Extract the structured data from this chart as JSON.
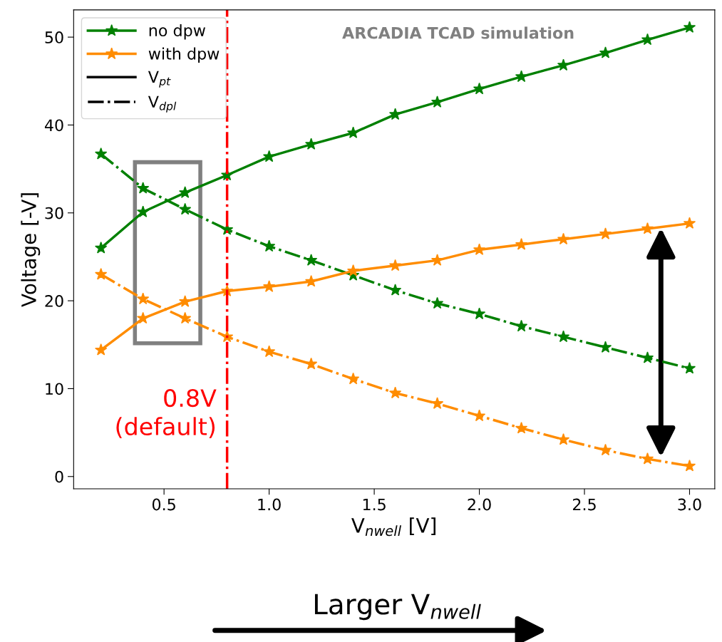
{
  "chart_data": {
    "type": "line",
    "xlabel": "V$_{nwell}$ [V]",
    "ylabel": "Voltage [-V]",
    "x": [
      0.2,
      0.4,
      0.6,
      0.8,
      1.0,
      1.2,
      1.4,
      1.6,
      1.8,
      2.0,
      2.2,
      2.4,
      2.6,
      2.8,
      3.0
    ],
    "series": [
      {
        "name": "no dpw",
        "color": "#008000",
        "line_style": "solid",
        "values": [
          26.0,
          30.1,
          32.3,
          34.3,
          36.4,
          37.8,
          39.1,
          41.2,
          42.6,
          44.1,
          45.5,
          46.8,
          48.2,
          49.7,
          51.1
        ]
      },
      {
        "color": "#008000",
        "line_style": "dashdot",
        "values": [
          36.7,
          32.8,
          30.4,
          28.1,
          26.2,
          24.6,
          22.9,
          21.2,
          19.7,
          18.5,
          17.1,
          15.9,
          14.7,
          13.5,
          12.3
        ]
      },
      {
        "name": "with dpw",
        "color": "#ff8c00",
        "line_style": "solid",
        "values": [
          14.4,
          18.0,
          19.9,
          21.1,
          21.6,
          22.2,
          23.4,
          24.0,
          24.6,
          25.8,
          26.4,
          27.0,
          27.6,
          28.2,
          28.8
        ]
      },
      {
        "color": "#ff8c00",
        "line_style": "dashdot",
        "values": [
          23.0,
          20.2,
          18.0,
          15.9,
          14.2,
          12.8,
          11.1,
          9.5,
          8.3,
          6.9,
          5.5,
          4.2,
          3.0,
          2.0,
          1.2
        ]
      }
    ],
    "marker": "star",
    "xlim": [
      0.07,
      3.12
    ],
    "ylim": [
      -1.4,
      53.1
    ],
    "xticks": [
      0.5,
      {
        "value": 1.0,
        "label": "1.0"
      },
      1.5,
      {
        "value": 2.0,
        "label": "2.0"
      },
      2.5,
      {
        "value": 3.0,
        "label": "3.0"
      }
    ],
    "yticks": [
      0,
      10,
      20,
      30,
      40,
      50
    ],
    "ref_lines": [
      {
        "axis": "x",
        "value": 0.8,
        "label": "0.8V\n(default)",
        "color": "#ff0000",
        "line_style": "dashdot"
      }
    ],
    "annotations": [
      "ARCADIA TCAD simulation",
      "Larger V$_{nwell}$",
      "V$_{pt}$",
      "V$_{dpl}$"
    ],
    "legend": "top left",
    "grid": false
  }
}
